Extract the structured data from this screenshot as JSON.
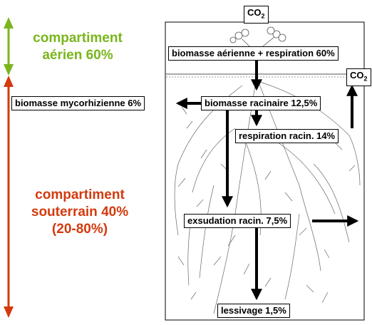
{
  "compartments": {
    "aerial": {
      "line1": "compartiment",
      "line2": "aérien 60%",
      "color": "#7ab51d"
    },
    "underground": {
      "line1": "compartiment",
      "line2": "souterrain 40%",
      "line3": "(20-80%)",
      "color": "#d33a0e"
    }
  },
  "nodes": {
    "co2_top": {
      "main": "CO",
      "sub": "2"
    },
    "co2_right": {
      "main": "CO",
      "sub": "2"
    },
    "aerial_biomass": "biomasse aérienne + respiration 60%",
    "mycorrhizal": "biomasse mycorhizienne 6%",
    "root_biomass": "biomasse racinaire 12,5%",
    "root_respiration": "respiration racin. 14%",
    "exudation": "exsudation racin. 7,5%",
    "leaching": "lessivage 1,5%"
  }
}
